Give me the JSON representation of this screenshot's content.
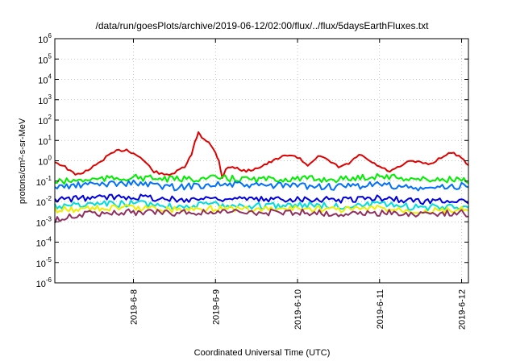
{
  "chart_data": {
    "type": "line",
    "title": "/data/run/goesPlots/archive/2019-06-12/02:00/flux/../flux/5daysEarthFluxes.txt",
    "xlabel": "Coordinated Universal Time (UTC)",
    "ylabel": "protons/cm²-s-sr-MeV",
    "yscale": "log",
    "ylim": [
      1e-06,
      1000000.0
    ],
    "xlim": [
      "2019-06-07T01:00",
      "2019-06-12T02:00"
    ],
    "grid": true,
    "y_ticks": [
      {
        "base": "10",
        "exp": "-6",
        "value": 1e-06
      },
      {
        "base": "10",
        "exp": "-5",
        "value": 1e-05
      },
      {
        "base": "10",
        "exp": "-4",
        "value": 0.0001
      },
      {
        "base": "10",
        "exp": "-3",
        "value": 0.001
      },
      {
        "base": "10",
        "exp": "-2",
        "value": 0.01
      },
      {
        "base": "10",
        "exp": "-1",
        "value": 0.1
      },
      {
        "base": "10",
        "exp": "0",
        "value": 1
      },
      {
        "base": "10",
        "exp": "1",
        "value": 10
      },
      {
        "base": "10",
        "exp": "2",
        "value": 100
      },
      {
        "base": "10",
        "exp": "3",
        "value": 1000
      },
      {
        "base": "10",
        "exp": "4",
        "value": 10000
      },
      {
        "base": "10",
        "exp": "5",
        "value": 100000
      },
      {
        "base": "10",
        "exp": "6",
        "value": 1000000
      }
    ],
    "x_ticks": [
      {
        "label": "2019-6-8",
        "value": "2019-06-08T00:00"
      },
      {
        "label": "2019-6-9",
        "value": "2019-06-09T00:00"
      },
      {
        "label": "2019-6-10",
        "value": "2019-06-10T00:00"
      },
      {
        "label": "2019-6-11",
        "value": "2019-06-11T00:00"
      },
      {
        "label": "2019-6-12",
        "value": "2019-06-12T00:00"
      }
    ],
    "series": [
      {
        "color": "#e00000",
        "x": [
          "2019-06-07T01:00",
          "2019-06-07T04:00",
          "2019-06-07T07:00",
          "2019-06-07T10:00",
          "2019-06-07T13:00",
          "2019-06-07T16:00",
          "2019-06-07T19:00",
          "2019-06-07T22:00",
          "2019-06-08T02:00",
          "2019-06-08T06:00",
          "2019-06-08T09:00",
          "2019-06-08T12:00",
          "2019-06-08T15:00",
          "2019-06-08T17:00",
          "2019-06-08T18:00",
          "2019-06-08T19:00",
          "2019-06-08T20:00",
          "2019-06-08T22:00",
          "2019-06-09T00:00",
          "2019-06-09T01:00",
          "2019-06-09T02:00",
          "2019-06-09T03:00",
          "2019-06-09T05:00",
          "2019-06-09T09:00",
          "2019-06-09T13:00",
          "2019-06-09T17:00",
          "2019-06-09T21:00",
          "2019-06-10T00:00",
          "2019-06-10T03:00",
          "2019-06-10T06:00",
          "2019-06-10T09:00",
          "2019-06-10T12:00",
          "2019-06-10T15:00",
          "2019-06-10T18:00",
          "2019-06-10T21:00",
          "2019-06-11T00:00",
          "2019-06-11T03:00",
          "2019-06-11T06:00",
          "2019-06-11T09:00",
          "2019-06-11T12:00",
          "2019-06-11T15:00",
          "2019-06-11T18:00",
          "2019-06-11T21:00",
          "2019-06-12T00:00",
          "2019-06-12T02:00"
        ],
        "y": [
          0.9,
          0.5,
          0.2,
          0.3,
          0.6,
          1.5,
          3.0,
          3.5,
          1.5,
          0.3,
          0.2,
          0.25,
          0.5,
          2.0,
          8.0,
          25.0,
          15.0,
          8.0,
          2.5,
          1.0,
          0.15,
          0.4,
          0.5,
          0.3,
          0.5,
          1.0,
          2.0,
          1.5,
          0.6,
          1.8,
          1.0,
          0.5,
          0.7,
          2.0,
          1.0,
          0.5,
          0.3,
          0.5,
          1.0,
          0.8,
          0.7,
          1.5,
          2.5,
          1.5,
          0.6
        ]
      },
      {
        "color": "#00ee00",
        "x": [
          "2019-06-07T01:00",
          "2019-06-07T12:00",
          "2019-06-08T00:00",
          "2019-06-08T12:00",
          "2019-06-09T00:00",
          "2019-06-09T12:00",
          "2019-06-10T00:00",
          "2019-06-10T12:00",
          "2019-06-11T00:00",
          "2019-06-11T12:00",
          "2019-06-12T00:00",
          "2019-06-12T02:00"
        ],
        "y": [
          0.09,
          0.12,
          0.15,
          0.12,
          0.14,
          0.12,
          0.13,
          0.12,
          0.18,
          0.12,
          0.12,
          0.08
        ]
      },
      {
        "color": "#0070ff",
        "x": [
          "2019-06-07T01:00",
          "2019-06-07T12:00",
          "2019-06-08T00:00",
          "2019-06-08T12:00",
          "2019-06-09T00:00",
          "2019-06-09T12:00",
          "2019-06-10T00:00",
          "2019-06-10T12:00",
          "2019-06-11T00:00",
          "2019-06-11T12:00",
          "2019-06-12T00:00",
          "2019-06-12T02:00"
        ],
        "y": [
          0.05,
          0.07,
          0.08,
          0.05,
          0.07,
          0.06,
          0.06,
          0.05,
          0.07,
          0.04,
          0.06,
          0.05
        ]
      },
      {
        "color": "#0000e0",
        "x": [
          "2019-06-07T01:00",
          "2019-06-07T12:00",
          "2019-06-08T00:00",
          "2019-06-08T12:00",
          "2019-06-09T00:00",
          "2019-06-09T12:00",
          "2019-06-10T00:00",
          "2019-06-10T12:00",
          "2019-06-11T00:00",
          "2019-06-11T12:00",
          "2019-06-12T00:00",
          "2019-06-12T02:00"
        ],
        "y": [
          0.012,
          0.015,
          0.018,
          0.012,
          0.015,
          0.012,
          0.014,
          0.012,
          0.015,
          0.01,
          0.012,
          0.008
        ]
      },
      {
        "color": "#00dddd",
        "x": [
          "2019-06-07T01:00",
          "2019-06-07T12:00",
          "2019-06-08T00:00",
          "2019-06-08T12:00",
          "2019-06-09T00:00",
          "2019-06-09T12:00",
          "2019-06-10T00:00",
          "2019-06-10T12:00",
          "2019-06-11T00:00",
          "2019-06-11T12:00",
          "2019-06-12T00:00",
          "2019-06-12T02:00"
        ],
        "y": [
          0.006,
          0.007,
          0.008,
          0.006,
          0.007,
          0.006,
          0.007,
          0.006,
          0.007,
          0.005,
          0.006,
          0.005
        ]
      },
      {
        "color": "#eeee00",
        "x": [
          "2019-06-07T01:00",
          "2019-06-07T12:00",
          "2019-06-08T00:00",
          "2019-06-08T12:00",
          "2019-06-09T00:00",
          "2019-06-09T12:00",
          "2019-06-10T00:00",
          "2019-06-10T12:00",
          "2019-06-11T00:00",
          "2019-06-11T12:00",
          "2019-06-12T00:00",
          "2019-06-12T02:00"
        ],
        "y": [
          0.004,
          0.0045,
          0.005,
          0.0042,
          0.0045,
          0.004,
          0.0045,
          0.004,
          0.0045,
          0.0035,
          0.004,
          0.0035
        ]
      },
      {
        "color": "#903060",
        "x": [
          "2019-06-07T01:00",
          "2019-06-07T06:00",
          "2019-06-07T12:00",
          "2019-06-08T00:00",
          "2019-06-08T12:00",
          "2019-06-09T00:00",
          "2019-06-09T12:00",
          "2019-06-10T00:00",
          "2019-06-10T12:00",
          "2019-06-11T00:00",
          "2019-06-11T12:00",
          "2019-06-12T00:00",
          "2019-06-12T02:00"
        ],
        "y": [
          0.0012,
          0.002,
          0.0025,
          0.003,
          0.0028,
          0.003,
          0.0028,
          0.003,
          0.0025,
          0.0028,
          0.0025,
          0.0028,
          0.0018
        ]
      }
    ]
  }
}
